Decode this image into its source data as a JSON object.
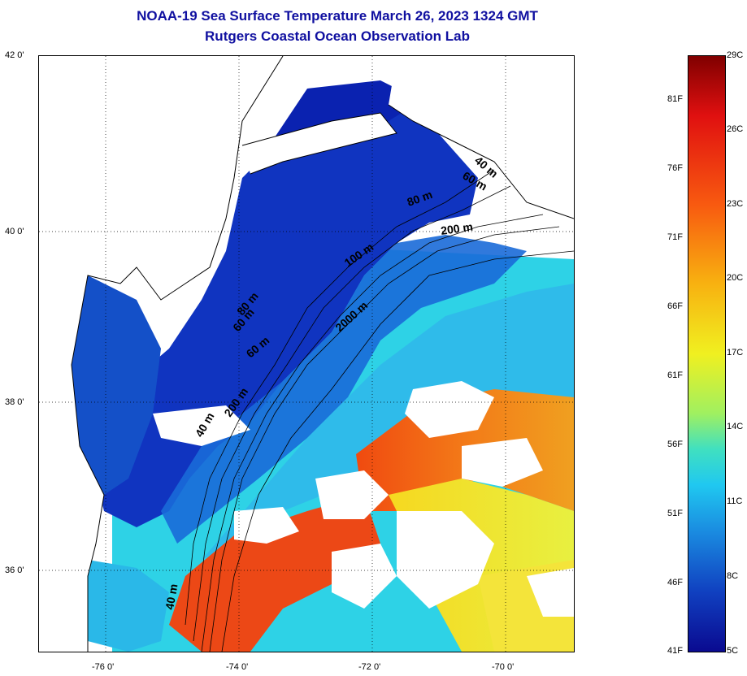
{
  "title": {
    "line1": "NOAA-19 Sea Surface Temperature March 26, 2023 1324 GMT",
    "line2": "Rutgers Coastal Ocean Observation Lab"
  },
  "map": {
    "lat_labels": [
      "42 0'",
      "40 0'",
      "38 0'",
      "36 0'"
    ],
    "lon_labels": [
      "-76 0'",
      "-74 0'",
      "-72 0'",
      "-70 0'"
    ],
    "contour_labels": [
      "40 m",
      "60 m",
      "80 m",
      "60 m",
      "80 m",
      "100 m",
      "200 m",
      "2000 m",
      "60 m",
      "40 m",
      "200 m",
      "40 m"
    ]
  },
  "colorbar": {
    "fahrenheit": [
      "81F",
      "76F",
      "71F",
      "66F",
      "61F",
      "56F",
      "51F",
      "46F",
      "41F"
    ],
    "celsius": [
      "29C",
      "26C",
      "23C",
      "20C",
      "17C",
      "14C",
      "11C",
      "8C",
      "5C"
    ]
  },
  "colors": {
    "title": "#1010a0",
    "cold": "#0a1a9a",
    "warm": "#e84010",
    "hot": "#8a0000"
  }
}
